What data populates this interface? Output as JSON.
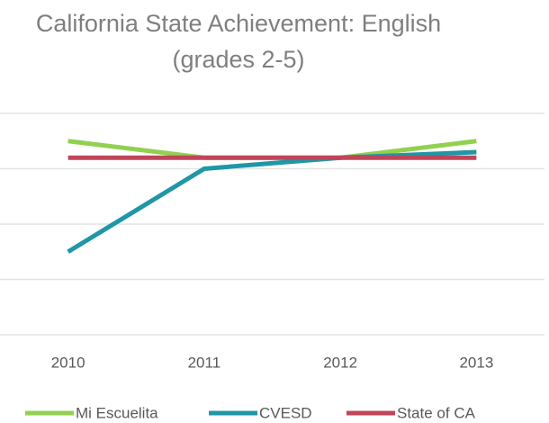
{
  "chart_data": {
    "type": "line",
    "title": [
      "California State Achievement: English",
      "(grades 2-5)"
    ],
    "categories": [
      "2010",
      "2011",
      "2012",
      "2013"
    ],
    "series": [
      {
        "name": "Mi Escuelita",
        "color": "#92d050",
        "values": [
          3.5,
          3.2,
          3.2,
          3.5
        ]
      },
      {
        "name": "CVESD",
        "color": "#1f97a6",
        "values": [
          1.5,
          3.0,
          3.2,
          3.3
        ]
      },
      {
        "name": "State of CA",
        "color": "#c0455a",
        "values": [
          3.2,
          3.2,
          3.2,
          3.2
        ]
      }
    ],
    "ylim": [
      0,
      4
    ],
    "yticks": [
      0,
      1,
      2,
      3,
      4
    ],
    "grid": true,
    "legend": "bottom"
  }
}
